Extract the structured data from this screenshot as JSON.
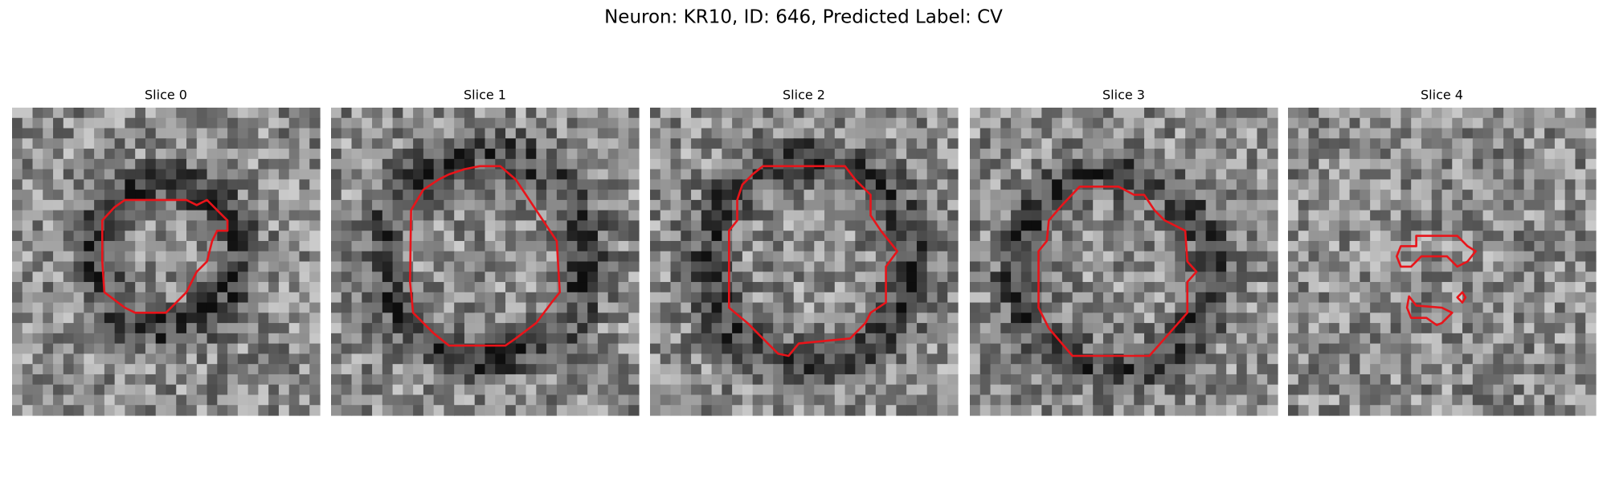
{
  "title": "Neuron: KR10, ID: 646, Predicted Label: CV",
  "panels": [
    {
      "title": "Slice 0"
    },
    {
      "title": "Slice 1"
    },
    {
      "title": "Slice 2"
    },
    {
      "title": "Slice 3"
    },
    {
      "title": "Slice 4"
    }
  ]
}
